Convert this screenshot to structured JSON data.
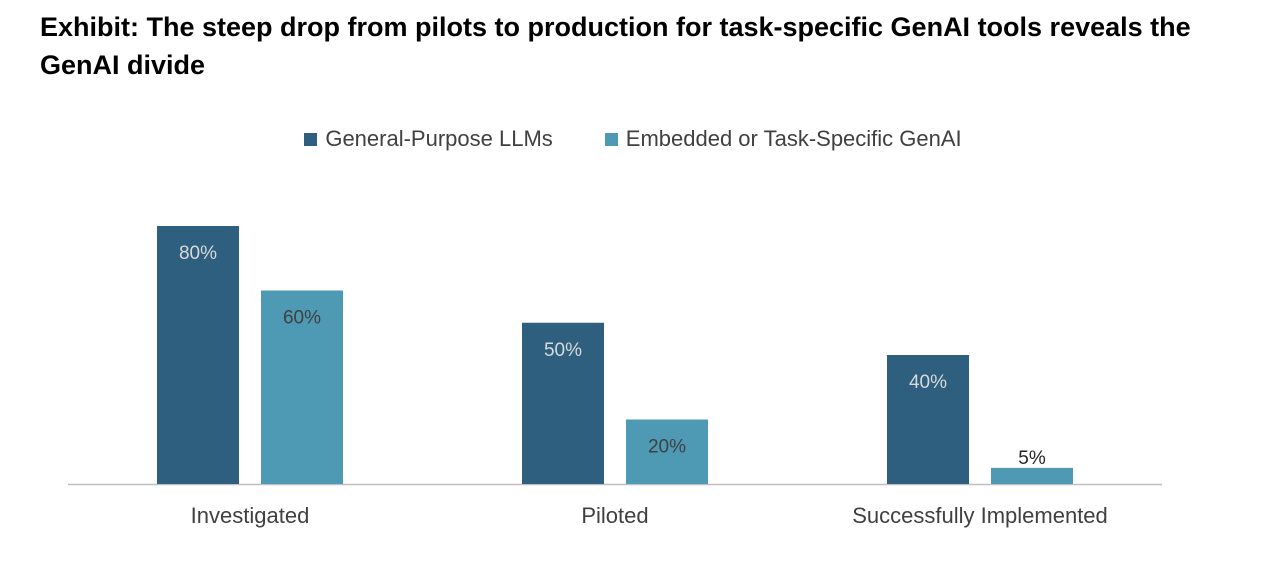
{
  "title": "Exhibit: The steep drop from pilots to production for task-specific GenAI tools reveals the GenAI divide",
  "chart_data": {
    "type": "bar",
    "categories": [
      "Investigated",
      "Piloted",
      "Successfully Implemented"
    ],
    "series": [
      {
        "name": "General-Purpose LLMs",
        "values": [
          80,
          50,
          40
        ],
        "labels": [
          "80%",
          "50%",
          "40%"
        ],
        "color": "#2E5F7F",
        "label_color": "#D9D9D9"
      },
      {
        "name": "Embedded or Task-Specific GenAI",
        "values": [
          60,
          20,
          5
        ],
        "labels": [
          "60%",
          "20%",
          "5%"
        ],
        "color": "#4E9AB5",
        "label_color": "#404040"
      }
    ],
    "ylim": [
      0,
      100
    ],
    "grid": false,
    "legend_position": "top-center",
    "axis_color": "#BFBFBF"
  }
}
